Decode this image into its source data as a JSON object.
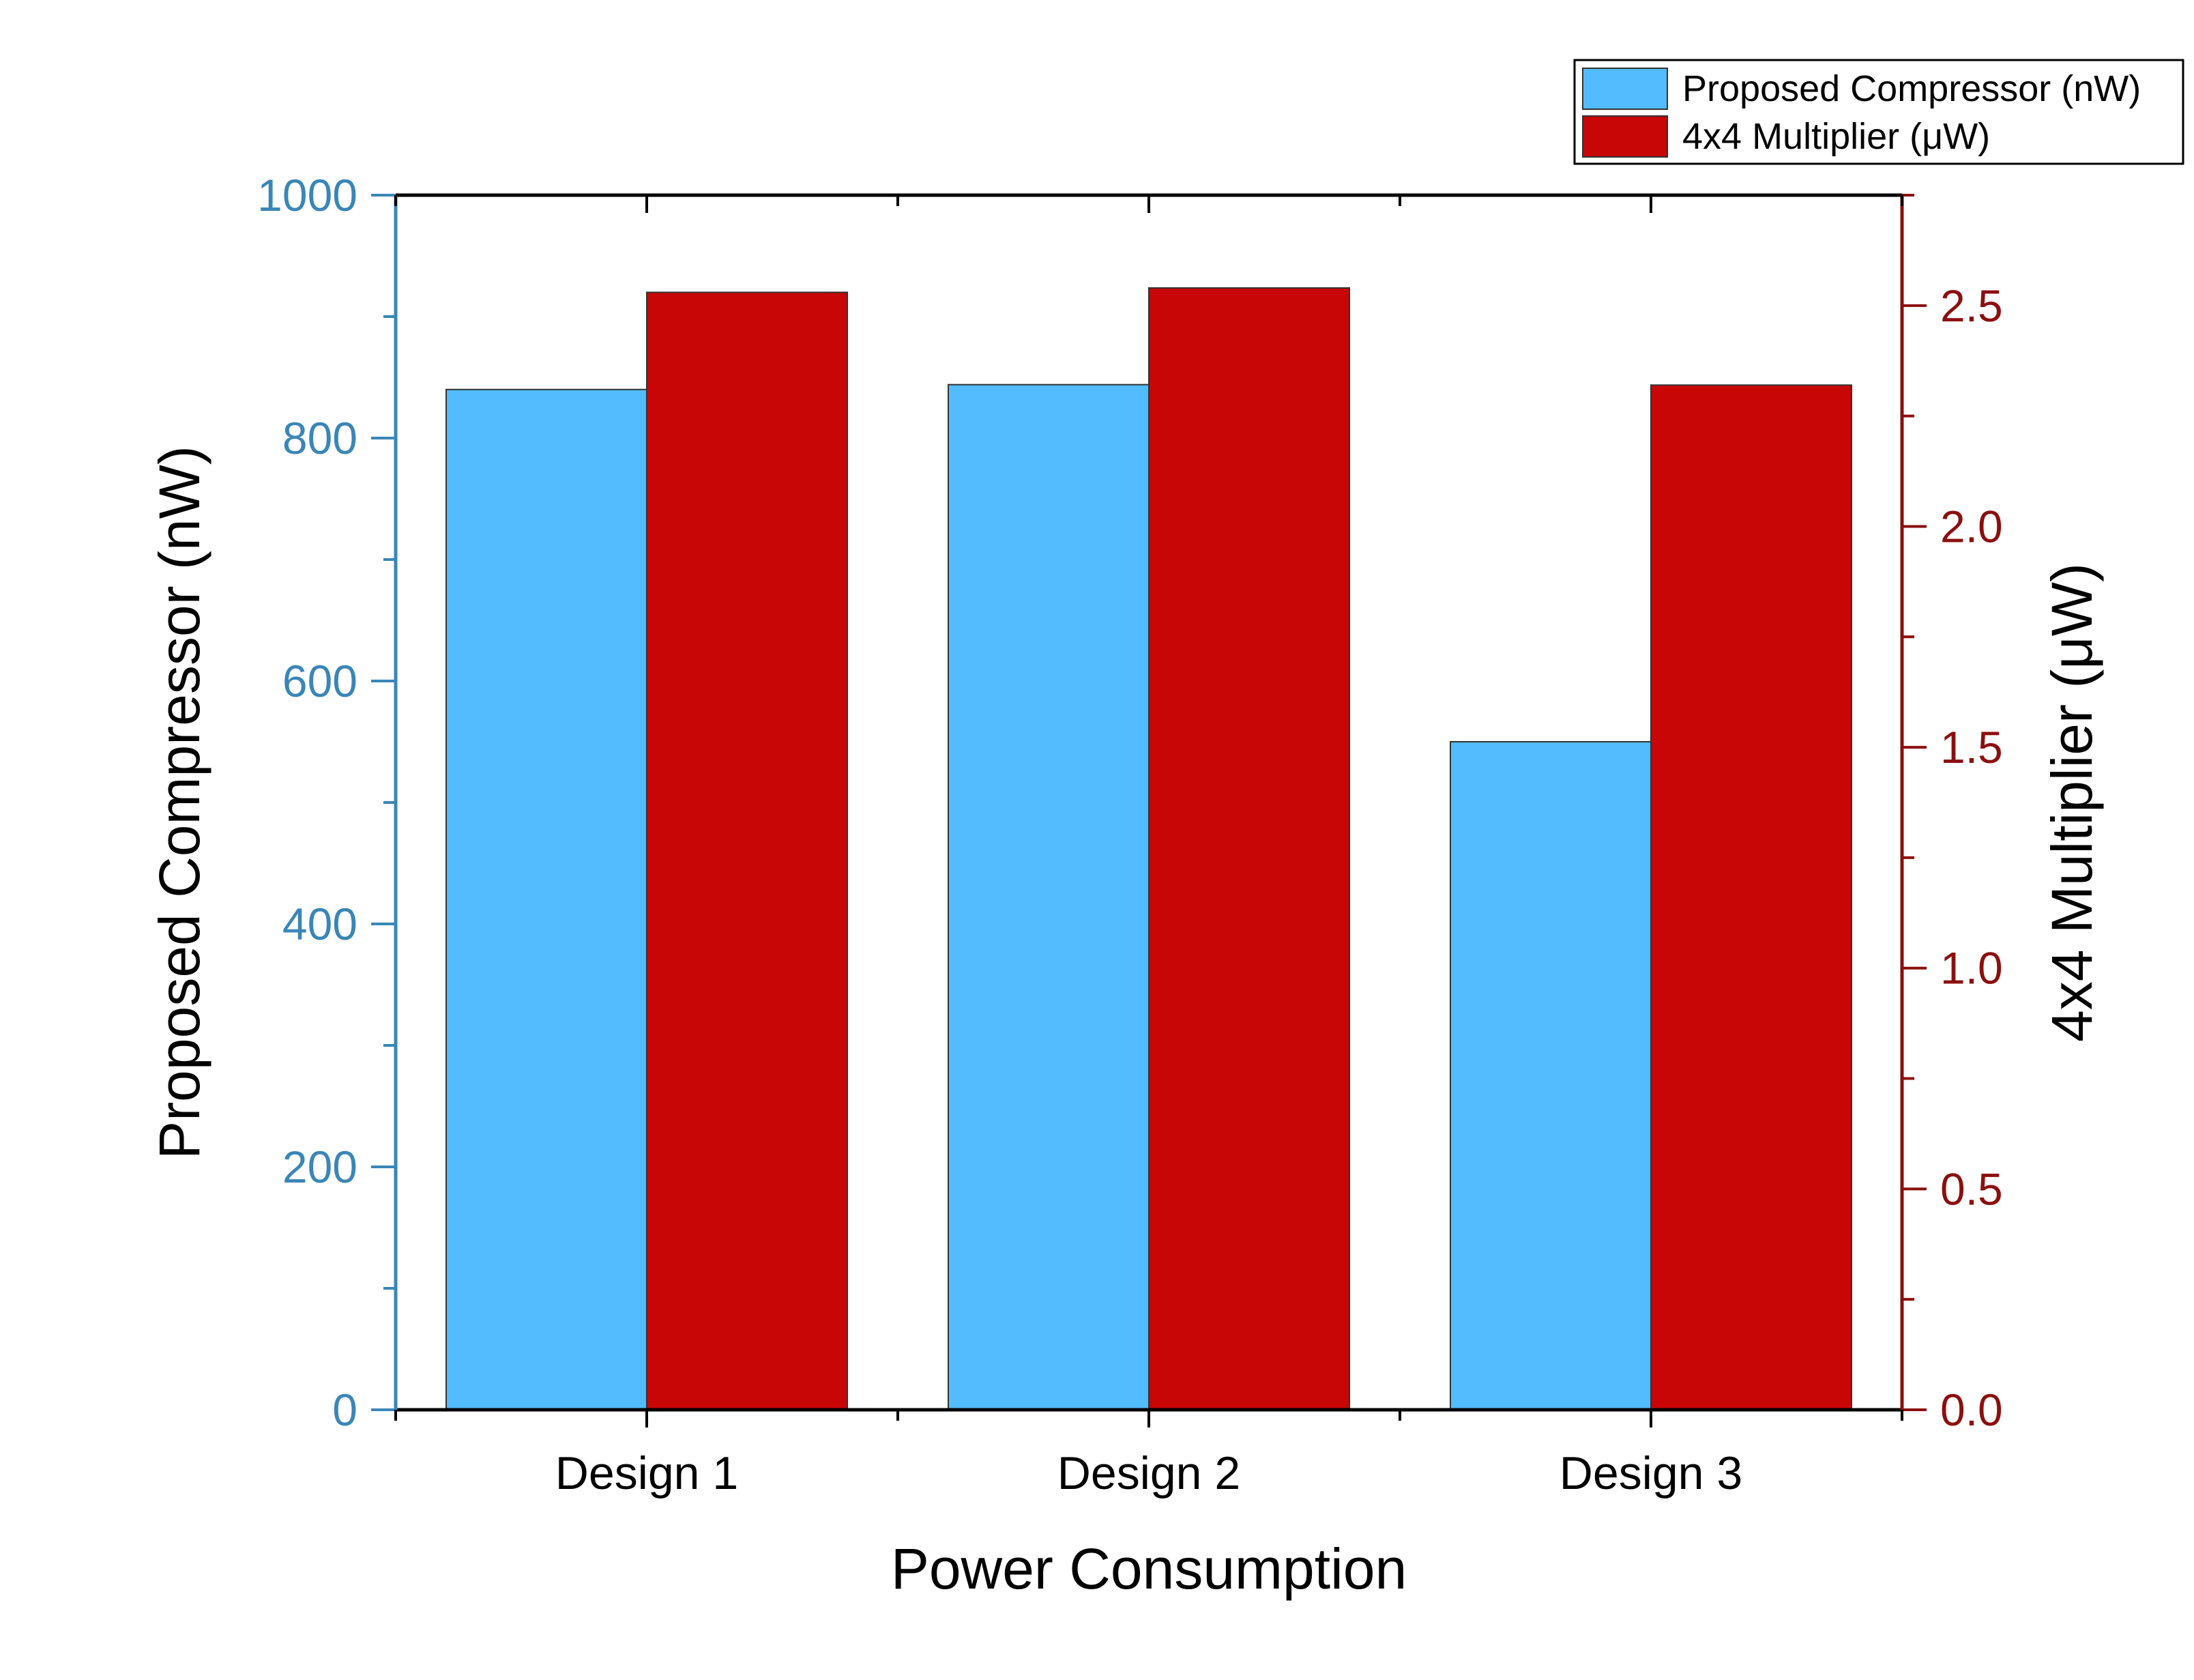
{
  "chart_data": {
    "type": "bar",
    "categories": [
      "Design 1",
      "Design 2",
      "Design 3"
    ],
    "xlabel": "Power Consumption",
    "series": [
      {
        "name": "Proposed Compressor (nW)",
        "axis": "left",
        "color": "#52bcff",
        "values": [
          840,
          844,
          550
        ]
      },
      {
        "name": "4x4 Multiplier (μW)",
        "axis": "right",
        "color": "#c80606",
        "values": [
          2.53,
          2.54,
          2.32
        ]
      }
    ],
    "y_left": {
      "label": "Proposed Compressor (nW)",
      "lim": [
        0,
        1000
      ],
      "ticks": [
        "0",
        "200",
        "400",
        "600",
        "800",
        "1000"
      ],
      "color": "#3a86b6"
    },
    "y_right": {
      "label": "4x4 Multiplier (μW)",
      "lim": [
        0,
        2.75
      ],
      "ticks": [
        "0.0",
        "0.5",
        "1.0",
        "1.5",
        "2.0",
        "2.5"
      ],
      "color": "#8b0f0f"
    },
    "grid": false,
    "legend_position": "top-right"
  }
}
